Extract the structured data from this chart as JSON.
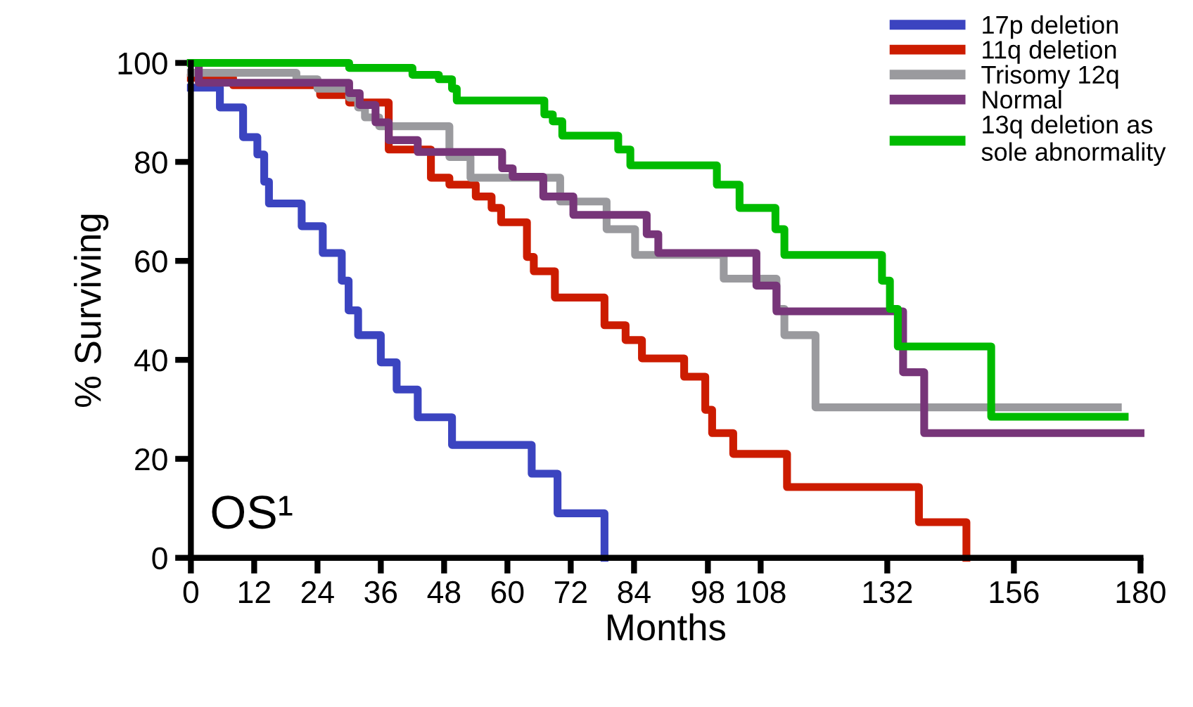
{
  "chart_data": {
    "type": "step",
    "xlabel": "Months",
    "ylabel": "% Surviving",
    "xlim": [
      0,
      180
    ],
    "xticks": [
      0,
      12,
      24,
      36,
      48,
      60,
      72,
      84,
      98,
      108,
      132,
      156,
      180
    ],
    "ylim": [
      0,
      100
    ],
    "yticks": [
      0,
      20,
      40,
      60,
      80,
      100
    ],
    "grid": false,
    "legend": "top right",
    "marker": "none",
    "line_style": "solid",
    "annotations": [
      "OS¹"
    ],
    "series": [
      {
        "name": "17p deletion",
        "color": "#3b44c0",
        "x": [
          0,
          5.5,
          9.9,
          12.6,
          13.9,
          14.8,
          21,
          25,
          28.6,
          29.9,
          31.7,
          36,
          39,
          43,
          49.5,
          64.6,
          69.5,
          78.4
        ],
        "values": [
          95,
          91,
          85,
          81.5,
          76,
          71.6,
          67,
          61.6,
          56,
          50,
          45,
          39.5,
          34,
          28.4,
          22.8,
          17,
          9,
          0
        ]
      },
      {
        "name": "11q deletion",
        "color": "#cc1c00",
        "x": [
          0,
          8,
          24.5,
          30,
          37.5,
          45.5,
          49,
          54,
          57,
          58.8,
          63.7,
          65,
          69,
          78.4,
          82.4,
          85.5,
          93.5,
          97.5,
          98.8,
          102.8,
          113,
          138,
          147
        ],
        "values": [
          97,
          95.5,
          93.5,
          92,
          82.5,
          76.8,
          75.4,
          73,
          70.7,
          67.8,
          60.8,
          57.9,
          52.6,
          47,
          44,
          40.3,
          36.6,
          29.9,
          25.2,
          21,
          14.3,
          7.2,
          0
        ]
      },
      {
        "name": "Trisomy 12q",
        "color": "#9a9a9e",
        "x": [
          0,
          20,
          24,
          30,
          31.7,
          33,
          35.7,
          49,
          53,
          70,
          78.8,
          84.2,
          101,
          111,
          112.5,
          118.4,
          175.7
        ],
        "values": [
          98,
          96.7,
          94.8,
          93,
          91,
          89,
          87.2,
          81,
          76.8,
          72,
          66.4,
          61.2,
          56.4,
          50.3,
          45,
          30.4,
          30.4
        ]
      },
      {
        "name": "Normal",
        "color": "#773579",
        "x": [
          0,
          1.5,
          30,
          32,
          35,
          37.5,
          43,
          59,
          61,
          66.8,
          72.5,
          86.4,
          88.6,
          107.2,
          111,
          135,
          139,
          180
        ],
        "values": [
          100,
          96,
          93.9,
          91.5,
          88,
          84.4,
          82,
          78.7,
          77,
          73,
          69.3,
          65.4,
          61.6,
          55,
          49.8,
          37.5,
          25.2,
          25.2
        ]
      },
      {
        "name": "13q deletion as\nsole abnormality",
        "color": "#00bb00",
        "x": [
          0,
          30,
          42,
          47,
          49.5,
          50.4,
          67,
          68.6,
          70.4,
          81,
          83.3,
          99.7,
          104,
          110.8,
          112.5,
          131,
          132.5,
          134,
          151.7,
          177
        ],
        "values": [
          100,
          99,
          97.6,
          96.7,
          94.8,
          92.4,
          89.6,
          88.2,
          85.3,
          82.5,
          79.3,
          75.4,
          70.7,
          66.4,
          61.2,
          56,
          50.3,
          42.7,
          28.5,
          28.5
        ]
      }
    ]
  }
}
